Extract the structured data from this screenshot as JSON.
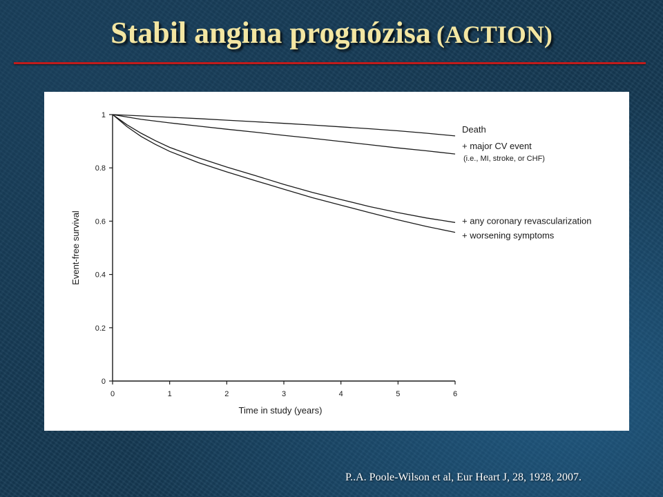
{
  "slide": {
    "title": "Stabil angina prognózisa",
    "title_suffix": "(ACTION)",
    "citation": "P..A. Poole-Wilson et al,  Eur Heart J, 28, 1928, 2007."
  },
  "colors": {
    "title": "#f3e6a2",
    "rule": "#c01c1c",
    "background": "#163a54",
    "line": "#1a1a1a"
  },
  "chart_data": {
    "type": "line",
    "title": "",
    "xlabel": "Time in study (years)",
    "ylabel": "Event-free survival",
    "xlim": [
      0,
      6
    ],
    "ylim": [
      0,
      1
    ],
    "x_ticks": [
      "0",
      "1",
      "2",
      "3",
      "4",
      "5",
      "6"
    ],
    "y_ticks": [
      "0",
      "0.2",
      "0.4",
      "0.6",
      "0.8",
      "1"
    ],
    "grid": false,
    "legend": "inline labels at right end of each curve",
    "series": [
      {
        "name": "Death",
        "x": [
          0,
          0.5,
          1,
          1.5,
          2,
          2.5,
          3,
          3.5,
          4,
          4.5,
          5,
          5.5,
          6
        ],
        "y": [
          1.0,
          0.995,
          0.99,
          0.985,
          0.979,
          0.973,
          0.967,
          0.961,
          0.954,
          0.947,
          0.939,
          0.93,
          0.92
        ]
      },
      {
        "name": "+ major CV event",
        "note": "(i.e., MI, stroke, or CHF)",
        "x": [
          0,
          0.5,
          1,
          1.5,
          2,
          2.5,
          3,
          3.5,
          4,
          4.5,
          5,
          5.5,
          6
        ],
        "y": [
          1.0,
          0.982,
          0.969,
          0.957,
          0.945,
          0.934,
          0.922,
          0.911,
          0.899,
          0.887,
          0.875,
          0.864,
          0.852
        ]
      },
      {
        "name": "+ any coronary revascularization",
        "x": [
          0,
          0.1,
          0.25,
          0.5,
          0.75,
          1,
          1.5,
          2,
          2.5,
          3,
          3.5,
          4,
          4.5,
          5,
          5.5,
          6
        ],
        "y": [
          1.0,
          0.985,
          0.962,
          0.93,
          0.902,
          0.877,
          0.838,
          0.803,
          0.771,
          0.738,
          0.708,
          0.681,
          0.655,
          0.632,
          0.612,
          0.595
        ]
      },
      {
        "name": "+ worsening symptoms",
        "x": [
          0,
          0.1,
          0.25,
          0.5,
          0.75,
          1,
          1.5,
          2,
          2.5,
          3,
          3.5,
          4,
          4.5,
          5,
          5.5,
          6
        ],
        "y": [
          1.0,
          0.982,
          0.955,
          0.918,
          0.888,
          0.862,
          0.82,
          0.785,
          0.752,
          0.72,
          0.688,
          0.66,
          0.632,
          0.605,
          0.58,
          0.558
        ]
      }
    ]
  }
}
